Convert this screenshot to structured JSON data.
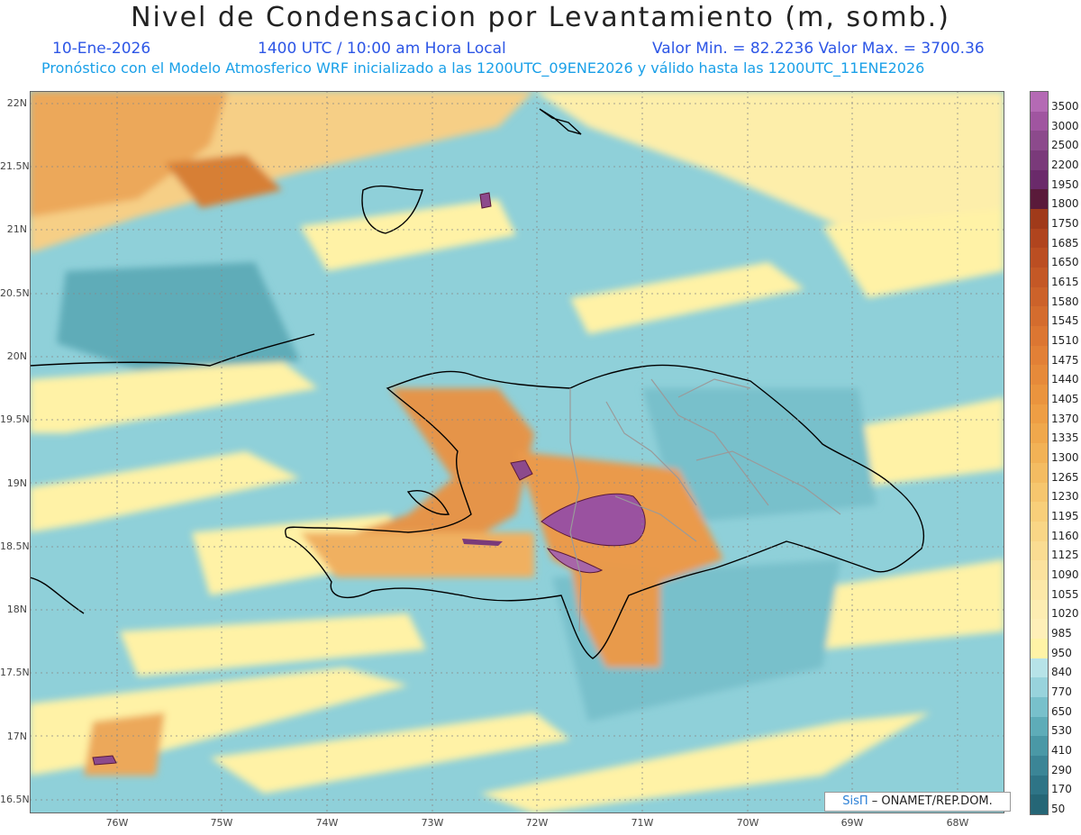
{
  "header": {
    "title": "Nivel de Condensacion por Levantamiento (m, somb.)",
    "date": "10-Ene-2026",
    "time": "1400 UTC / 10:00 am Hora Local",
    "minmax": "Valor Min. = 82.2236   Valor Max. = 3700.36",
    "forecast_info": "Pronóstico con el Modelo Atmosferico WRF inicializado a las 1200UTC_09ENE2026 y válido hasta las  1200UTC_11ENE2026"
  },
  "axes": {
    "lat_labels": [
      "22N",
      "21.5N",
      "21N",
      "20.5N",
      "20N",
      "19.5N",
      "19N",
      "18.5N",
      "18N",
      "17.5N",
      "17N",
      "16.5N"
    ],
    "lon_labels": [
      "76W",
      "75W",
      "74W",
      "73W",
      "72W",
      "71W",
      "70W",
      "69W",
      "68W"
    ]
  },
  "legend": {
    "levels": [
      "3500",
      "3000",
      "2500",
      "2200",
      "1950",
      "1800",
      "1750",
      "1685",
      "1650",
      "1615",
      "1580",
      "1545",
      "1510",
      "1475",
      "1440",
      "1405",
      "1370",
      "1335",
      "1300",
      "1265",
      "1230",
      "1195",
      "1160",
      "1125",
      "1090",
      "1055",
      "1020",
      "985",
      "950",
      "840",
      "770",
      "650",
      "530",
      "410",
      "290",
      "170",
      "50"
    ],
    "colors": [
      "#b46ab4",
      "#a055a0",
      "#8c4a8c",
      "#7a3a7a",
      "#6a2a6a",
      "#5a1a3a",
      "#a03a1a",
      "#b0441e",
      "#bb4e22",
      "#c45826",
      "#cc622a",
      "#d46c2e",
      "#dc7632",
      "#e28036",
      "#e68a3a",
      "#ea943e",
      "#ee9e44",
      "#f0a84c",
      "#f2b256",
      "#f4bc62",
      "#f6c66e",
      "#f8cf7a",
      "#f9d686",
      "#fadc92",
      "#fbe29e",
      "#fce8a8",
      "#fdedb2",
      "#feefb8",
      "#fff3a6",
      "#b7e3e8",
      "#98d3dc",
      "#78c0cb",
      "#5eacb8",
      "#4a98a6",
      "#3b8596",
      "#2e7486",
      "#256676"
    ]
  },
  "credit": {
    "brand": "SisΠ",
    "org": " – ONAMET/REP.DOM."
  },
  "colors": {
    "sea_teal": "#7fc8d2",
    "land_orange": "#e79a4c",
    "high_purple": "#9a52a0",
    "border": "#000000",
    "provinces": "#9a9a9a"
  }
}
